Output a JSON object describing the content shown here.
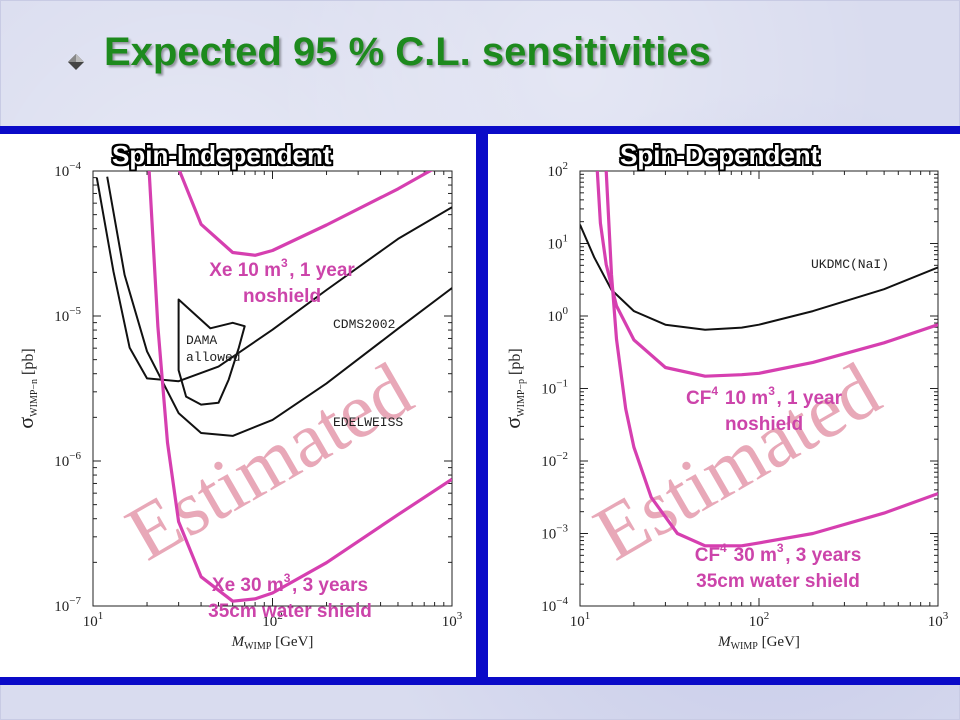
{
  "slide": {
    "title": "Expected 95 % C.L. sensitivities"
  },
  "colors": {
    "title": "#1d8a1d",
    "band": "#0a0ac8",
    "projection": "#d63fb0",
    "watermark": "#e8a8b8",
    "experimental": "#111111"
  },
  "panels": [
    {
      "heading": "Spin-Independent",
      "watermark": "Estimated",
      "y_label": {
        "sym": "σ",
        "sub": "WIMP−n",
        "unit": "[pb]"
      },
      "x_label": {
        "sym": "M",
        "sub": "WIMP",
        "unit": "[GeV]"
      },
      "annotations": [
        {
          "lines": [
            "Xe 10 m{3}, 1 year",
            "noshield"
          ]
        },
        {
          "lines": [
            "Xe 30 m{3}, 3 years",
            "35cm water shield"
          ]
        }
      ]
    },
    {
      "heading": "Spin-Dependent",
      "watermark": "Estimated",
      "y_label": {
        "sym": "σ",
        "sub": "WIMP−p",
        "unit": "[pb]"
      },
      "x_label": {
        "sym": "M",
        "sub": "WIMP",
        "unit": "[GeV]"
      },
      "annotations": [
        {
          "lines": [
            "CF{4} 10 m{3}, 1 year",
            "noshield"
          ]
        },
        {
          "lines": [
            "CF{4} 30 m{3}, 3 years",
            "35cm water shield"
          ]
        }
      ]
    }
  ],
  "chart_data": [
    {
      "type": "line",
      "title": "Spin-Independent",
      "xscale": "log",
      "yscale": "log",
      "xlim": [
        10,
        1000
      ],
      "ylim": [
        1e-07,
        0.0001
      ],
      "xticks": [
        10,
        100,
        1000
      ],
      "xtick_labels": [
        {
          "b": "10",
          "e": "1"
        },
        {
          "b": "10",
          "e": "2"
        },
        {
          "b": "10",
          "e": "3"
        }
      ],
      "yticks": [
        1e-07,
        1e-06,
        1e-05,
        0.0001
      ],
      "ytick_labels": [
        {
          "b": "10",
          "e": "−7"
        },
        {
          "b": "10",
          "e": "−6"
        },
        {
          "b": "10",
          "e": "−5"
        },
        {
          "b": "10",
          "e": "−4"
        }
      ],
      "series": [
        {
          "name": "CDMS2002",
          "color": "#111111",
          "points": [
            [
              10.5,
              8.99e-05
            ],
            [
              13,
              2.02e-05
            ],
            [
              16,
              6.05e-06
            ],
            [
              20,
              3.71e-06
            ],
            [
              30,
              3.55e-06
            ],
            [
              50,
              4.48e-06
            ],
            [
              100,
              8.05e-06
            ],
            [
              200,
              1.51e-05
            ],
            [
              500,
              3.4e-05
            ],
            [
              1000,
              5.63e-05
            ]
          ]
        },
        {
          "name": "EDELWEISS",
          "color": "#111111",
          "points": [
            [
              12,
              9.14e-05
            ],
            [
              15,
              1.92e-05
            ],
            [
              20,
              5.71e-06
            ],
            [
              30,
              2.14e-06
            ],
            [
              40,
              1.56e-06
            ],
            [
              60,
              1.49e-06
            ],
            [
              100,
              1.92e-06
            ],
            [
              200,
              3.43e-06
            ],
            [
              500,
              8.17e-06
            ],
            [
              1000,
              1.56e-05
            ]
          ]
        },
        {
          "name": "DAMA allowed",
          "color": "#111111",
          "closed": true,
          "points": [
            [
              30,
              1.3e-05
            ],
            [
              45,
              8.22e-06
            ],
            [
              60,
              8.97e-06
            ],
            [
              70,
              8.51e-06
            ],
            [
              65,
              6.07e-06
            ],
            [
              57,
              3.64e-06
            ],
            [
              50,
              2.52e-06
            ],
            [
              40,
              2.45e-06
            ],
            [
              33,
              2.78e-06
            ],
            [
              30,
              4.23e-06
            ],
            [
              30,
              1.3e-05
            ]
          ]
        },
        {
          "name": "Xe 10 m3, 1 year noshield",
          "color": "#d63fb0",
          "points": [
            [
              30,
              0.000104
            ],
            [
              40,
              4.29e-05
            ],
            [
              60,
              2.74e-05
            ],
            [
              80,
              2.62e-05
            ],
            [
              100,
              2.83e-05
            ],
            [
              200,
              4.24e-05
            ],
            [
              500,
              7.52e-05
            ],
            [
              1000,
              0.000122
            ]
          ]
        },
        {
          "name": "Xe 30 m3, 3 years 35cm water shield",
          "color": "#d63fb0",
          "points": [
            [
              20.5,
              0.000104
            ],
            [
              23,
              8.43e-06
            ],
            [
              26,
              1.34e-06
            ],
            [
              30,
              3.82e-07
            ],
            [
              40,
              1.59e-07
            ],
            [
              60,
              1.08e-07
            ],
            [
              80,
              1.12e-07
            ],
            [
              100,
              1.23e-07
            ],
            [
              200,
              1.99e-07
            ],
            [
              500,
              4.26e-07
            ],
            [
              1000,
              7.49e-07
            ]
          ]
        }
      ],
      "annotations": [
        "CDMS2002",
        "EDELWEISS",
        "DAMA",
        "allowed"
      ]
    },
    {
      "type": "line",
      "title": "Spin-Dependent",
      "xscale": "log",
      "yscale": "log",
      "xlim": [
        10,
        1000
      ],
      "ylim": [
        0.0001,
        100
      ],
      "xticks": [
        10,
        100,
        1000
      ],
      "xtick_labels": [
        {
          "b": "10",
          "e": "1"
        },
        {
          "b": "10",
          "e": "2"
        },
        {
          "b": "10",
          "e": "3"
        }
      ],
      "yticks": [
        0.0001,
        0.001,
        0.01,
        0.1,
        1,
        10,
        100
      ],
      "ytick_labels": [
        {
          "b": "10",
          "e": "−4"
        },
        {
          "b": "10",
          "e": "−3"
        },
        {
          "b": "10",
          "e": "−2"
        },
        {
          "b": "10",
          "e": "−1"
        },
        {
          "b": "10",
          "e": "0"
        },
        {
          "b": "10",
          "e": "1"
        },
        {
          "b": "10",
          "e": "2"
        }
      ],
      "series": [
        {
          "name": "UKDMC(NaI)",
          "color": "#111111",
          "points": [
            [
              10,
              18.2
            ],
            [
              12,
              6.46
            ],
            [
              15,
              2.29
            ],
            [
              20,
              1.17
            ],
            [
              30,
              0.759
            ],
            [
              50,
              0.646
            ],
            [
              80,
              0.692
            ],
            [
              100,
              0.759
            ],
            [
              200,
              1.17
            ],
            [
              500,
              2.34
            ],
            [
              1000,
              4.68
            ]
          ]
        },
        {
          "name": "CF4 10 m3, 1 year noshield",
          "color": "#d63fb0",
          "points": [
            [
              12.5,
              100
            ],
            [
              13,
              19.1
            ],
            [
              14,
              5.13
            ],
            [
              16,
              1.38
            ],
            [
              20,
              0.468
            ],
            [
              30,
              0.195
            ],
            [
              50,
              0.148
            ],
            [
              80,
              0.155
            ],
            [
              100,
              0.162
            ],
            [
              200,
              0.229
            ],
            [
              500,
              0.427
            ],
            [
              1000,
              0.759
            ]
          ]
        },
        {
          "name": "CF4 30 m3, 3 years 35cm water shield",
          "color": "#d63fb0",
          "points": [
            [
              14,
              100
            ],
            [
              15,
              3.72
            ],
            [
              16,
              0.479
            ],
            [
              18,
              0.0525
            ],
            [
              20,
              0.0155
            ],
            [
              25,
              0.00316
            ],
            [
              35,
              0.001
            ],
            [
              50,
              0.000676
            ],
            [
              80,
              0.000676
            ],
            [
              100,
              0.000741
            ],
            [
              200,
              0.001
            ],
            [
              500,
              0.00191
            ],
            [
              1000,
              0.00355
            ]
          ]
        }
      ],
      "annotations": [
        "UKDMC(NaI)"
      ]
    }
  ]
}
